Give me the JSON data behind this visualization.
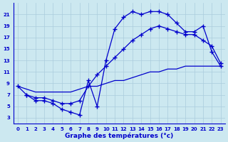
{
  "title": "Graphe des températures (°c)",
  "bg_color": "#cce8f0",
  "grid_color": "#aaccdd",
  "line_color": "#0000cc",
  "marker": "+",
  "markersize": 4,
  "linewidth": 0.9,
  "xlim": [
    -0.5,
    23.5
  ],
  "ylim": [
    2,
    23
  ],
  "xticks": [
    0,
    1,
    2,
    3,
    4,
    5,
    6,
    7,
    8,
    9,
    10,
    11,
    12,
    13,
    14,
    15,
    16,
    17,
    18,
    19,
    20,
    21,
    22,
    23
  ],
  "yticks": [
    3,
    5,
    7,
    9,
    11,
    13,
    15,
    17,
    19,
    21
  ],
  "curve1_x": [
    0,
    1,
    2,
    3,
    4,
    5,
    6,
    7,
    8,
    9,
    10,
    11,
    12,
    13,
    14,
    15,
    16,
    17,
    18,
    19,
    20,
    21,
    22,
    23
  ],
  "curve1_y": [
    8.5,
    7.0,
    6.0,
    6.0,
    5.5,
    4.5,
    4.0,
    3.5,
    9.5,
    5.0,
    13.0,
    18.5,
    20.5,
    21.5,
    21.0,
    21.5,
    21.5,
    21.0,
    19.5,
    18.0,
    18.0,
    19.0,
    14.5,
    12.0
  ],
  "curve2_x": [
    1,
    2,
    3,
    4,
    5,
    6,
    7,
    8,
    9,
    10,
    11,
    12,
    13,
    14,
    15,
    16,
    17,
    18,
    19,
    20,
    21,
    22,
    23
  ],
  "curve2_y": [
    7.0,
    6.5,
    6.5,
    6.0,
    5.5,
    5.5,
    6.0,
    8.5,
    10.5,
    12.0,
    13.5,
    15.0,
    16.5,
    17.5,
    18.5,
    19.0,
    18.5,
    18.0,
    17.5,
    17.5,
    16.5,
    15.5,
    12.5
  ],
  "curve3_x": [
    0,
    1,
    2,
    3,
    4,
    5,
    6,
    7,
    8,
    9,
    10,
    11,
    12,
    13,
    14,
    15,
    16,
    17,
    18,
    19,
    20,
    21,
    22,
    23
  ],
  "curve3_y": [
    8.5,
    8.0,
    7.5,
    7.5,
    7.5,
    7.5,
    7.5,
    8.0,
    8.5,
    8.5,
    9.0,
    9.5,
    9.5,
    10.0,
    10.5,
    11.0,
    11.0,
    11.5,
    11.5,
    12.0,
    12.0,
    12.0,
    12.0,
    12.0
  ]
}
